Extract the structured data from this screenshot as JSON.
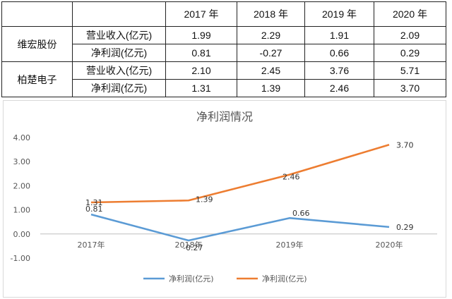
{
  "table": {
    "years": [
      "2017 年",
      "2018 年",
      "2019 年",
      "2020 年"
    ],
    "companies": [
      {
        "name": "维宏股份",
        "rows": [
          {
            "metric": "营业收入(亿元)",
            "values": [
              "1.99",
              "2.29",
              "1.91",
              "2.09"
            ]
          },
          {
            "metric": "净利润(亿元)",
            "values": [
              "0.81",
              "-0.27",
              "0.66",
              "0.29"
            ]
          }
        ]
      },
      {
        "name": "柏楚电子",
        "rows": [
          {
            "metric": "营业收入(亿元)",
            "values": [
              "2.10",
              "2.45",
              "3.76",
              "5.71"
            ]
          },
          {
            "metric": "净利润(亿元)",
            "values": [
              "1.31",
              "1.39",
              "2.46",
              "3.70"
            ]
          }
        ]
      }
    ]
  },
  "chart_data": {
    "type": "line",
    "title": "净利润情况",
    "categories": [
      "2017年",
      "2018年",
      "2019年",
      "2020年"
    ],
    "series": [
      {
        "name": "净利润(亿元)",
        "color": "#5b9bd5",
        "values": [
          0.81,
          -0.27,
          0.66,
          0.29
        ],
        "labels": [
          "0.81",
          "-0.27",
          "0.66",
          "0.29"
        ]
      },
      {
        "name": "净利润(亿元)",
        "color": "#ed7d31",
        "values": [
          1.31,
          1.39,
          2.46,
          3.7
        ],
        "labels": [
          "1.31",
          "1.39",
          "2.46",
          "3.70"
        ]
      }
    ],
    "ylim": [
      -1.0,
      4.0
    ],
    "yticks": [
      "4.00",
      "3.00",
      "2.00",
      "1.00",
      "0.00",
      "-1.00"
    ],
    "ytick_values": [
      4,
      3,
      2,
      1,
      0,
      -1
    ],
    "legend": "bottom"
  }
}
